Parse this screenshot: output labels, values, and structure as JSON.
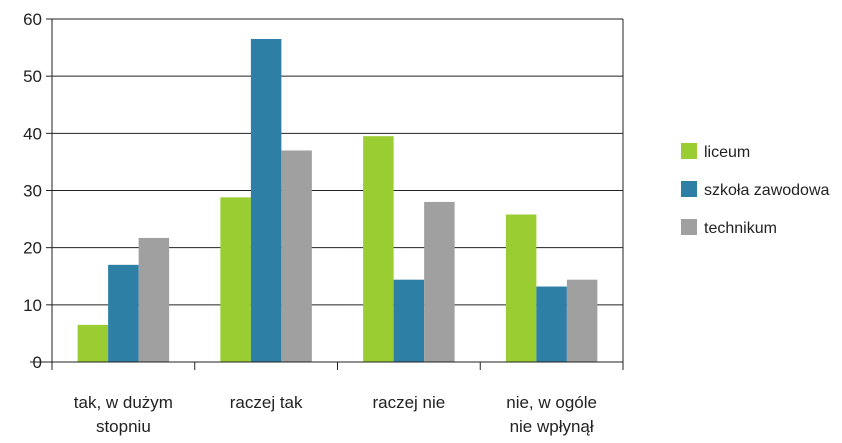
{
  "chart_data": {
    "type": "bar",
    "categories": [
      [
        "tak, w dużym",
        "stopniu"
      ],
      [
        "raczej tak"
      ],
      [
        "raczej nie"
      ],
      [
        "nie, w ogóle",
        "nie wpłynął"
      ]
    ],
    "series": [
      {
        "name": "liceum",
        "color": "#9acd32",
        "values": [
          6.5,
          28.8,
          39.5,
          25.8
        ]
      },
      {
        "name": "szkoła zawodowa",
        "color": "#2e7fa6",
        "values": [
          17,
          56.5,
          14.4,
          13.2
        ]
      },
      {
        "name": "technikum",
        "color": "#a0a0a0",
        "values": [
          21.7,
          37,
          28,
          14.4
        ]
      }
    ],
    "ylim": [
      0,
      60
    ],
    "yticks": [
      0,
      10,
      20,
      30,
      40,
      50,
      60
    ],
    "grid": true,
    "legend_position": "right"
  }
}
